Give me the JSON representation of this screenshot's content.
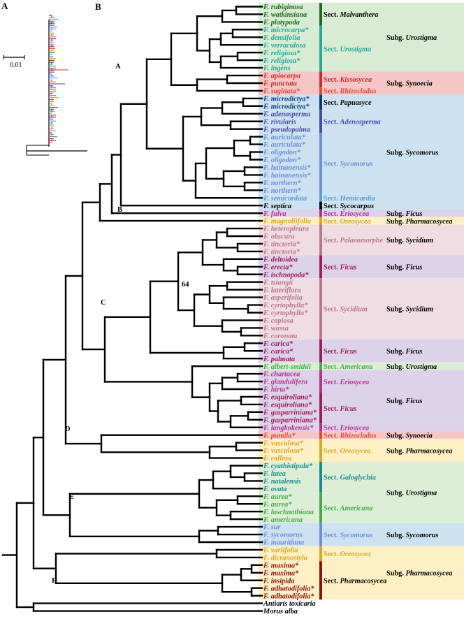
{
  "panels": {
    "a": "A",
    "b": "B"
  },
  "scale_bar": {
    "label": "0.01"
  },
  "nodes": {
    "a": "A",
    "b": "B",
    "c": "C",
    "d": "D",
    "e": "E",
    "f": "F",
    "support": "64"
  },
  "colors": {
    "black": "#000000",
    "dk_green": "#1e6b1e",
    "teal": "#2aa79b",
    "dk_teal": "#1d8c8c",
    "red": "#c92c2c",
    "orange_red": "#e0483c",
    "blue": "#2f55a8",
    "navy": "#0b3a7a",
    "indigo": "#4a4aa6",
    "lt_blue": "#6b8fd6",
    "sky": "#5aa0d8",
    "purple": "#6a3d9a",
    "gold": "#d9a52a",
    "mauve": "#b8788c",
    "magenta": "#b4338b",
    "crimson": "#9c1d5a",
    "green": "#4aa84a",
    "dk_red": "#8b0f14",
    "bg_green": "#d8ecd3",
    "bg_pink": "#f4c6c6",
    "bg_blue": "#cde2f1",
    "bg_lavender": "#dcd3ea",
    "bg_yellow": "#fdf0c4",
    "bg_rose": "#f0dde3",
    "bg_lt_green": "#dcefd6"
  },
  "taxa": [
    {
      "name": "F. rubiginosa",
      "color": "dk_green"
    },
    {
      "name": "F. watkinsiana",
      "color": "dk_green"
    },
    {
      "name": "F. platypoda",
      "color": "dk_green"
    },
    {
      "name": "F. microcarpa*",
      "color": "teal"
    },
    {
      "name": "F. densifolia",
      "color": "teal"
    },
    {
      "name": "F. verraculosa",
      "color": "teal"
    },
    {
      "name": "F. religiosa*",
      "color": "teal"
    },
    {
      "name": "F. religiosa*",
      "color": "teal"
    },
    {
      "name": "F. ingens",
      "color": "teal"
    },
    {
      "name": "F. apiocarpa",
      "color": "red"
    },
    {
      "name": "F. punctata",
      "color": "red"
    },
    {
      "name": "F. sagittata*",
      "color": "orange_red"
    },
    {
      "name": "F. microdictya*",
      "color": "navy"
    },
    {
      "name": "F. microdictya*",
      "color": "navy"
    },
    {
      "name": "F. adenosperma",
      "color": "indigo"
    },
    {
      "name": "F. rivularis",
      "color": "indigo"
    },
    {
      "name": "F. pseudopalma",
      "color": "indigo"
    },
    {
      "name": "F. auriculata*",
      "color": "lt_blue"
    },
    {
      "name": "F. auriculata*",
      "color": "lt_blue"
    },
    {
      "name": "F. oligodon*",
      "color": "lt_blue"
    },
    {
      "name": "F. oligodon*",
      "color": "lt_blue"
    },
    {
      "name": "F. hainanensis*",
      "color": "lt_blue"
    },
    {
      "name": "F. hainanensis*",
      "color": "lt_blue"
    },
    {
      "name": "F. northern*",
      "color": "lt_blue"
    },
    {
      "name": "F. northern*",
      "color": "lt_blue"
    },
    {
      "name": "F. semicordata",
      "color": "sky"
    },
    {
      "name": "F. septica",
      "color": "black"
    },
    {
      "name": "F. fulva",
      "color": "magenta"
    },
    {
      "name": "F. magnoliifolia",
      "color": "gold"
    },
    {
      "name": "F. heteropleura",
      "color": "mauve"
    },
    {
      "name": "F. obscura",
      "color": "mauve"
    },
    {
      "name": "F. tinctoria*",
      "color": "mauve"
    },
    {
      "name": "F. tinctoria*",
      "color": "mauve"
    },
    {
      "name": "F. deltoidea",
      "color": "crimson"
    },
    {
      "name": "F. erecta*",
      "color": "crimson"
    },
    {
      "name": "F. ischnopoda*",
      "color": "crimson"
    },
    {
      "name": "F. tsiangii",
      "color": "mauve"
    },
    {
      "name": "F. lateriflora",
      "color": "mauve"
    },
    {
      "name": "F. asperifolia",
      "color": "mauve"
    },
    {
      "name": "F. cyrtophylla*",
      "color": "mauve"
    },
    {
      "name": "F. cyrtophylla*",
      "color": "mauve"
    },
    {
      "name": "F. copiosa",
      "color": "mauve"
    },
    {
      "name": "F. wassa",
      "color": "mauve"
    },
    {
      "name": "F. coronata",
      "color": "mauve"
    },
    {
      "name": "F. carica*",
      "color": "crimson"
    },
    {
      "name": "F. carica*",
      "color": "crimson"
    },
    {
      "name": "F. palmata",
      "color": "crimson"
    },
    {
      "name": "F. albert-smithii",
      "color": "green"
    },
    {
      "name": "F. chartacea",
      "color": "magenta"
    },
    {
      "name": "F. glandulifera",
      "color": "magenta"
    },
    {
      "name": "F. hirta*",
      "color": "magenta"
    },
    {
      "name": "F. esquiroliana*",
      "color": "crimson"
    },
    {
      "name": "F. esquiroliana*",
      "color": "crimson"
    },
    {
      "name": "F. gasparriniana*",
      "color": "crimson"
    },
    {
      "name": "F. gasparriniana*",
      "color": "crimson"
    },
    {
      "name": "F. langkokensis*",
      "color": "magenta"
    },
    {
      "name": "F. pumila*",
      "color": "orange_red"
    },
    {
      "name": "F. vasculosa*",
      "color": "gold"
    },
    {
      "name": "F. vasculosa*",
      "color": "gold"
    },
    {
      "name": "F. callosa",
      "color": "gold"
    },
    {
      "name": "F. cyathistipula*",
      "color": "dk_teal"
    },
    {
      "name": "F. lutea",
      "color": "dk_teal"
    },
    {
      "name": "F. natalensis",
      "color": "dk_teal"
    },
    {
      "name": "F. ovata",
      "color": "dk_teal"
    },
    {
      "name": "F. aurea*",
      "color": "green"
    },
    {
      "name": "F. aurea*",
      "color": "green"
    },
    {
      "name": "F. luschnathiana",
      "color": "green"
    },
    {
      "name": "F. americana",
      "color": "green"
    },
    {
      "name": "F. sur",
      "color": "lt_blue"
    },
    {
      "name": "F. sycomorus",
      "color": "lt_blue"
    },
    {
      "name": "F. mauritiana",
      "color": "lt_blue"
    },
    {
      "name": "F. variifolia",
      "color": "gold"
    },
    {
      "name": "F. dicranostyla",
      "color": "gold"
    },
    {
      "name": "F. maxima*",
      "color": "dk_red"
    },
    {
      "name": "F. maxima*",
      "color": "dk_red"
    },
    {
      "name": "F. insipida",
      "color": "dk_red"
    },
    {
      "name": "F. adhatodifolia*",
      "color": "dk_red"
    },
    {
      "name": "F. adhatodifolia*",
      "color": "dk_red"
    },
    {
      "name": "Antiaris toxicaria",
      "color": "black"
    },
    {
      "name": "Morus alba",
      "color": "black"
    }
  ],
  "sections": [
    {
      "prefix": "Sect. ",
      "name": "Malvanthera",
      "bg": "bg_green",
      "bar": "dk_green",
      "color": "black",
      "from": 0,
      "to": 2
    },
    {
      "prefix": "Sect. ",
      "name": "Urostigma",
      "bg": "bg_green",
      "bar": "teal",
      "color": "teal",
      "from": 3,
      "to": 8
    },
    {
      "prefix": "Sect. ",
      "name": "Kissosycea",
      "bg": "bg_pink",
      "bar": "red",
      "color": "red",
      "from": 9,
      "to": 10
    },
    {
      "prefix": "Sect. ",
      "name": "Rhizocladus",
      "bg": "bg_pink",
      "bar": "orange_red",
      "color": "orange_red",
      "from": 11,
      "to": 11
    },
    {
      "prefix": "Sect. ",
      "name": "Papuasyce",
      "bg": "bg_blue",
      "bar": "navy",
      "color": "black",
      "from": 12,
      "to": 13
    },
    {
      "prefix": "Sect. ",
      "name": "Adenosperma",
      "bg": "bg_blue",
      "bar": "indigo",
      "color": "indigo",
      "from": 14,
      "to": 16
    },
    {
      "prefix": "Sect. ",
      "name": "Sycomorus",
      "bg": "bg_blue",
      "bar": "lt_blue",
      "color": "lt_blue",
      "from": 17,
      "to": 24
    },
    {
      "prefix": "Sect. ",
      "name": "Hemicardia",
      "bg": "bg_blue",
      "bar": "sky",
      "color": "sky",
      "from": 25,
      "to": 25
    },
    {
      "prefix": "Sect. ",
      "name": "Sycocarpus",
      "bg": "bg_blue",
      "bar": "black",
      "color": "black",
      "from": 26,
      "to": 26
    },
    {
      "prefix": "Sect. ",
      "name": "Eriosycea",
      "bg": "bg_lavender",
      "bar": "magenta",
      "color": "magenta",
      "from": 27,
      "to": 27
    },
    {
      "prefix": "Sect. ",
      "name": "Oreosycea",
      "bg": "bg_yellow",
      "bar": "gold",
      "color": "gold",
      "from": 28,
      "to": 28
    },
    {
      "prefix": "Sect. ",
      "name": "Palaeomorphe",
      "bg": "bg_rose",
      "bar": "mauve",
      "color": "mauve",
      "from": 29,
      "to": 32
    },
    {
      "prefix": "Sect. ",
      "name": "Ficus",
      "bg": "bg_lavender",
      "bar": "crimson",
      "color": "crimson",
      "from": 33,
      "to": 35
    },
    {
      "prefix": "Sect. ",
      "name": "Sycidium",
      "bg": "bg_rose",
      "bar": "mauve",
      "color": "mauve",
      "from": 36,
      "to": 43
    },
    {
      "prefix": "Sect. ",
      "name": "Ficus",
      "bg": "bg_lavender",
      "bar": "crimson",
      "color": "crimson",
      "from": 44,
      "to": 46
    },
    {
      "prefix": "Sect. ",
      "name": "Americana",
      "bg": "bg_lt_green",
      "bar": "green",
      "color": "green",
      "from": 47,
      "to": 47
    },
    {
      "prefix": "Sect. ",
      "name": "Eriosycea",
      "bg": "bg_lavender",
      "bar": "magenta",
      "color": "magenta",
      "from": 48,
      "to": 50
    },
    {
      "prefix": "Sect. ",
      "name": "Ficus",
      "bg": "bg_lavender",
      "bar": "crimson",
      "color": "crimson",
      "from": 51,
      "to": 54
    },
    {
      "prefix": "Sect. ",
      "name": "Eriosycea",
      "bg": "bg_lavender",
      "bar": "magenta",
      "color": "magenta",
      "from": 55,
      "to": 55
    },
    {
      "prefix": "Sect. ",
      "name": "Rhizocladus",
      "bg": "bg_pink",
      "bar": "orange_red",
      "color": "orange_red",
      "from": 56,
      "to": 56
    },
    {
      "prefix": "Sect. ",
      "name": "Oreosycea",
      "bg": "bg_yellow",
      "bar": "gold",
      "color": "gold",
      "from": 57,
      "to": 59
    },
    {
      "prefix": "Sect. ",
      "name": "Galoglychia",
      "bg": "bg_lt_green",
      "bar": "dk_teal",
      "color": "dk_teal",
      "from": 60,
      "to": 63
    },
    {
      "prefix": "Sect. ",
      "name": "Americana",
      "bg": "bg_lt_green",
      "bar": "green",
      "color": "green",
      "from": 64,
      "to": 67
    },
    {
      "prefix": "Sect. ",
      "name": "Sycomorus",
      "bg": "bg_blue",
      "bar": "lt_blue",
      "color": "lt_blue",
      "from": 68,
      "to": 70
    },
    {
      "prefix": "Sect. ",
      "name": "Oreosycea",
      "bg": "bg_yellow",
      "bar": "gold",
      "color": "gold",
      "from": 71,
      "to": 72
    },
    {
      "prefix": "Sect. ",
      "name": "Pharmacosycea",
      "bg": "bg_yellow",
      "bar": "dk_red",
      "color": "black",
      "from": 73,
      "to": 77
    }
  ],
  "subgenera": [
    {
      "prefix": "Subg. ",
      "name": "Urostigma",
      "from": 0,
      "to": 8
    },
    {
      "prefix": "Subg. ",
      "name": "Synoecia",
      "from": 9,
      "to": 11
    },
    {
      "prefix": "Subg. ",
      "name": "Sycomorus",
      "from": 12,
      "to": 26
    },
    {
      "prefix": "Subg. ",
      "name": "Ficus",
      "from": 27,
      "to": 27
    },
    {
      "prefix": "Subg. ",
      "name": "Pharmacosycea",
      "from": 28,
      "to": 28
    },
    {
      "prefix": "Subg. ",
      "name": "Sycidium",
      "from": 29,
      "to": 32
    },
    {
      "prefix": "Subg. ",
      "name": "Ficus",
      "from": 33,
      "to": 35
    },
    {
      "prefix": "Subg. ",
      "name": "Sycidium",
      "from": 36,
      "to": 43
    },
    {
      "prefix": "Subg. ",
      "name": "Ficus",
      "from": 44,
      "to": 46
    },
    {
      "prefix": "Subg. ",
      "name": "Urostigma",
      "from": 47,
      "to": 47
    },
    {
      "prefix": "Subg. ",
      "name": "Ficus",
      "from": 48,
      "to": 55
    },
    {
      "prefix": "Subg. ",
      "name": "Synoecia",
      "from": 56,
      "to": 56
    },
    {
      "prefix": "Subg. ",
      "name": "Pharmacosycea",
      "from": 57,
      "to": 59
    },
    {
      "prefix": "Subg. ",
      "name": "Urostigma",
      "from": 60,
      "to": 67
    },
    {
      "prefix": "Subg. ",
      "name": "Sycomorus",
      "from": 68,
      "to": 70
    },
    {
      "prefix": "Subg. ",
      "name": "Pharmacosycea",
      "from": 71,
      "to": 77
    }
  ]
}
